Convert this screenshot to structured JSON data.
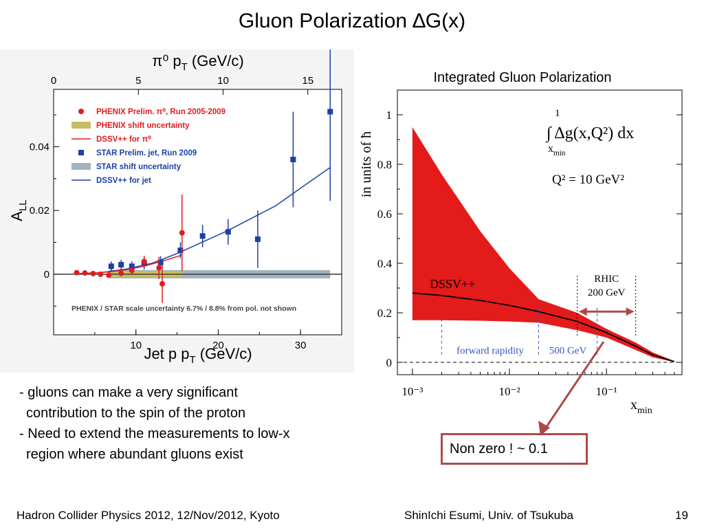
{
  "slide": {
    "title": "Gluon Polarization ∆G(x)",
    "bullets": [
      "- gluons can make a very significant",
      "  contribution to the spin of the proton",
      "- Need to extend the measurements to low-x",
      "  region where abundant gluons exist"
    ],
    "callout": "Non zero !  ~ 0.1",
    "footer_left": "Hadron Collider Physics 2012, 12/Nov/2012, Kyoto",
    "footer_center": "ShinIchi Esumi, Univ. of Tsukuba",
    "page_number": "19"
  },
  "chart_data": [
    {
      "type": "scatter",
      "title": "",
      "top_xlabel": "π⁰ p_T (GeV/c)",
      "xlabel": "Jet p_T (GeV/c)",
      "ylabel": "A_LL",
      "xlim": [
        0,
        35
      ],
      "ylim": [
        -0.019,
        0.058
      ],
      "top_xlim": [
        0,
        17
      ],
      "x_ticks": [
        "10",
        "20",
        "30"
      ],
      "top_ticks": [
        "0",
        "5",
        "10",
        "15"
      ],
      "y_ticks": [
        "0",
        "0.02",
        "0.04"
      ],
      "legend_position": "top-left",
      "colors": {
        "phenix": "#e11d1d",
        "star": "#1c3fa8",
        "phenix_band": "#c7bd68",
        "star_band": "#a2b3bf"
      },
      "legend": [
        {
          "label": "PHENIX Prelim. π⁰, Run 2005-2009",
          "kind": "dot",
          "color": "#e11d1d"
        },
        {
          "label": "PHENIX shift uncertainty",
          "kind": "band",
          "color": "#c7bd68"
        },
        {
          "label": "DSSV++ for π⁰",
          "kind": "line",
          "color": "#e11d1d"
        },
        {
          "label": "STAR Prelim. jet, Run 2009",
          "kind": "square",
          "color": "#1c3fa8"
        },
        {
          "label": "STAR shift uncertainty",
          "kind": "band",
          "color": "#a2b3bf"
        },
        {
          "label": "DSSV++ for jet",
          "kind": "line",
          "color": "#1c3fa8"
        }
      ],
      "footnote": "PHENIX / STAR scale uncertainty 6.7% / 8.8% from pol. not shown",
      "series": [
        {
          "name": "PHENIX Prelim. π⁰, Run 2005-2009",
          "x": [
            2.8,
            3.8,
            4.8,
            5.7,
            6.7,
            8.2,
            9.5,
            11.0,
            12.8,
            13.2,
            15.6
          ],
          "y": [
            0.0005,
            0.0004,
            0.0002,
            0.0,
            -0.0003,
            0.0003,
            0.0012,
            0.004,
            0.002,
            -0.003,
            0.013
          ],
          "err": [
            0.0003,
            0.0003,
            0.0003,
            0.0003,
            0.0004,
            0.0006,
            0.001,
            0.0018,
            0.0035,
            0.006,
            0.012
          ]
        },
        {
          "name": "STAR Prelim. jet, Run 2009",
          "x": [
            7.0,
            8.2,
            9.5,
            11.0,
            13.0,
            15.4,
            18.1,
            21.2,
            24.8,
            29.1,
            33.6
          ],
          "y": [
            0.0025,
            0.003,
            0.0025,
            0.0035,
            0.0037,
            0.0075,
            0.012,
            0.0133,
            0.011,
            0.036,
            0.051
          ],
          "err": [
            0.0015,
            0.0015,
            0.0015,
            0.002,
            0.002,
            0.0025,
            0.0035,
            0.004,
            0.009,
            0.015,
            0.028
          ]
        },
        {
          "name": "DSSV++ for π⁰",
          "x": [
            2.8,
            5,
            7,
            9,
            11,
            13,
            15.6
          ],
          "y": [
            0.0002,
            0.0004,
            0.0008,
            0.0015,
            0.0025,
            0.004,
            0.006
          ]
        },
        {
          "name": "DSSV++ for jet",
          "x": [
            2.8,
            6,
            9,
            12,
            15,
            18,
            21,
            24,
            27,
            30,
            33.6
          ],
          "y": [
            0.0001,
            0.0006,
            0.0017,
            0.0035,
            0.0065,
            0.01,
            0.0135,
            0.0175,
            0.0215,
            0.027,
            0.0335
          ]
        }
      ],
      "shift_bands": [
        {
          "name": "STAR shift uncertainty",
          "x": [
            6.8,
            33.6
          ],
          "y": [
            -0.0013,
            0.0013
          ]
        },
        {
          "name": "PHENIX shift uncertainty",
          "x": [
            6.8,
            15.6
          ],
          "y": [
            -0.0009,
            0.0009
          ]
        }
      ]
    },
    {
      "type": "area",
      "title": "Integrated Gluon Polarization",
      "xlabel": "x_min",
      "ylabel": "in units of ħ",
      "x_scale": "log",
      "xlim": [
        0.0007,
        0.6
      ],
      "ylim": [
        -0.05,
        1.1
      ],
      "y_ticks": [
        "0",
        "0.2",
        "0.4",
        "0.6",
        "0.8",
        "1"
      ],
      "x_ticks": [
        "10⁻³",
        "10⁻²",
        "10⁻¹"
      ],
      "formula": "∫ Δg(x,Q²) dx",
      "formula_upper": "1",
      "formula_lower": "x_min",
      "q2_label": "Q² = 10 GeV²",
      "central_label": "DSSV++",
      "colors": {
        "band": "#e31b1b",
        "central": "#000000",
        "region": "#3a55c0",
        "arrow": "#b04848"
      },
      "series": [
        {
          "name": "DSSV++",
          "x": [
            0.001,
            0.002,
            0.005,
            0.01,
            0.02,
            0.05,
            0.1,
            0.2,
            0.3,
            0.5
          ],
          "y": [
            0.28,
            0.27,
            0.25,
            0.23,
            0.205,
            0.165,
            0.12,
            0.065,
            0.03,
            0.003
          ]
        },
        {
          "name": "band_upper",
          "x": [
            0.001,
            0.002,
            0.005,
            0.01,
            0.02,
            0.05,
            0.1,
            0.2,
            0.3,
            0.5
          ],
          "y": [
            0.95,
            0.76,
            0.53,
            0.38,
            0.255,
            0.2,
            0.135,
            0.08,
            0.04,
            0.005
          ]
        },
        {
          "name": "band_lower",
          "x": [
            0.001,
            0.002,
            0.005,
            0.01,
            0.02,
            0.05,
            0.1,
            0.2,
            0.3,
            0.5
          ],
          "y": [
            0.17,
            0.17,
            0.168,
            0.165,
            0.16,
            0.13,
            0.1,
            0.05,
            0.02,
            0.001
          ]
        }
      ],
      "regions": [
        {
          "label": "forward rapidity",
          "x": [
            0.002,
            0.02
          ]
        },
        {
          "label": "500 GeV",
          "x": [
            0.02,
            0.08
          ]
        },
        {
          "label": "RHIC\n200 GeV",
          "x": [
            0.05,
            0.2
          ]
        }
      ]
    }
  ]
}
